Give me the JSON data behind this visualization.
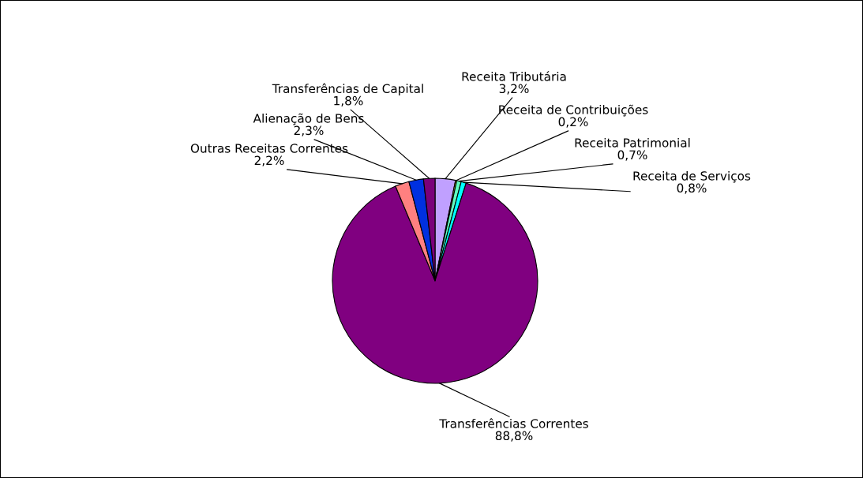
{
  "chart_data": {
    "type": "pie",
    "categories": [
      "Receita Tributária",
      "Receita de Contribuições",
      "Receita Patrimonial",
      "Receita de Serviços",
      "Transferências Correntes",
      "Outras Receitas Correntes",
      "Alienação de Bens",
      "Transferências de Capital"
    ],
    "values": [
      3.2,
      0.2,
      0.7,
      0.8,
      88.8,
      2.2,
      2.3,
      1.8
    ],
    "value_labels": [
      "3,2%",
      "0,2%",
      "0,7%",
      "0,8%",
      "88,8%",
      "2,2%",
      "2,3%",
      "1,8%"
    ],
    "colors": [
      "#c0a0ff",
      "#ffff40",
      "#60ffc0",
      "#00ffff",
      "#800080",
      "#ff8080",
      "#0030e0",
      "#7a007a"
    ]
  }
}
